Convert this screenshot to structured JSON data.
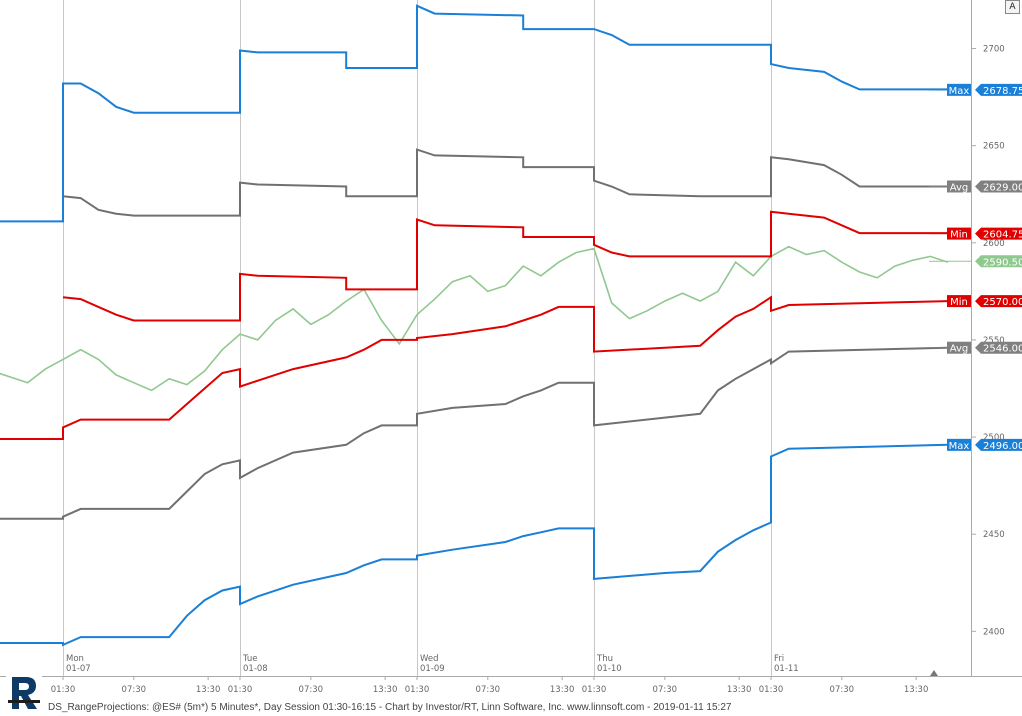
{
  "chart_data": {
    "type": "line",
    "footer": "DS_RangeProjections: @ES# (5m*) 5 Minutes*, Day Session 01:30-16:15 - Chart by Investor/RT, Linn Software, Inc. www.linnsoft.com - 2019-01-11 15:27",
    "ylim": [
      2377,
      2725
    ],
    "yticks": [
      2400,
      2450,
      2500,
      2550,
      2600,
      2650,
      2700
    ],
    "days": [
      {
        "name": "Mon",
        "date": "01-07"
      },
      {
        "name": "Tue",
        "date": "01-08"
      },
      {
        "name": "Wed",
        "date": "01-09"
      },
      {
        "name": "Thu",
        "date": "01-10"
      },
      {
        "name": "Fri",
        "date": "01-11"
      }
    ],
    "time_labels": [
      "01:30",
      "07:30",
      "13:30"
    ],
    "colors": {
      "max": "#1a7fd6",
      "avg": "#707070",
      "min": "#e00000",
      "price": "#90c890",
      "grid": "#c8c8c8",
      "axis": "#aaaaaa"
    },
    "markers": [
      {
        "label": "Max",
        "value": "2678.75",
        "y": 2678.75,
        "color": "#1a7fd6"
      },
      {
        "label": "Avg",
        "value": "2629.00",
        "y": 2629.0,
        "color": "#808080"
      },
      {
        "label": "Min",
        "value": "2604.75",
        "y": 2604.75,
        "color": "#e00000"
      },
      {
        "label": "",
        "value": "2590.50",
        "y": 2590.5,
        "color": "#8fc98f"
      },
      {
        "label": "Min",
        "value": "2570.00",
        "y": 2570.0,
        "color": "#e00000"
      },
      {
        "label": "Avg",
        "value": "2546.00",
        "y": 2546.0,
        "color": "#808080"
      },
      {
        "label": "Max",
        "value": "2496.00",
        "y": 2496.0,
        "color": "#1a7fd6"
      }
    ],
    "upper_series": [
      {
        "name": "",
        "color": "#1a7fd6",
        "points": [
          [
            0.0,
            2611
          ],
          [
            1.0,
            2611
          ],
          [
            1.0,
            2682
          ],
          [
            1.1,
            2682
          ],
          [
            1.2,
            2677
          ],
          [
            1.3,
            2670
          ],
          [
            1.4,
            2667
          ],
          [
            2.0,
            2667
          ],
          [
            2.0,
            2699
          ],
          [
            2.1,
            2698
          ],
          [
            2.6,
            2698
          ],
          [
            2.6,
            2690
          ],
          [
            3.0,
            2690
          ],
          [
            3.0,
            2722
          ],
          [
            3.1,
            2718
          ],
          [
            3.6,
            2717
          ],
          [
            3.6,
            2710
          ],
          [
            4.0,
            2710
          ],
          [
            4.0,
            2710
          ],
          [
            4.1,
            2707
          ],
          [
            4.2,
            2702
          ],
          [
            4.6,
            2702
          ],
          [
            4.6,
            2702
          ],
          [
            5.0,
            2702
          ],
          [
            5.0,
            2692
          ],
          [
            5.1,
            2690
          ],
          [
            5.3,
            2688
          ],
          [
            5.4,
            2683
          ],
          [
            5.5,
            2679
          ],
          [
            6.0,
            2679
          ]
        ]
      },
      {
        "name": "",
        "color": "#707070",
        "points": [
          [
            1.0,
            2624
          ],
          [
            1.1,
            2623
          ],
          [
            1.2,
            2617
          ],
          [
            1.3,
            2615
          ],
          [
            1.4,
            2614
          ],
          [
            2.0,
            2614
          ],
          [
            2.0,
            2631
          ],
          [
            2.1,
            2630
          ],
          [
            2.6,
            2629
          ],
          [
            2.6,
            2624
          ],
          [
            3.0,
            2624
          ],
          [
            3.0,
            2648
          ],
          [
            3.1,
            2645
          ],
          [
            3.6,
            2644
          ],
          [
            3.6,
            2639
          ],
          [
            4.0,
            2639
          ],
          [
            4.0,
            2632
          ],
          [
            4.1,
            2629
          ],
          [
            4.2,
            2625
          ],
          [
            4.6,
            2624
          ],
          [
            4.6,
            2624
          ],
          [
            5.0,
            2624
          ],
          [
            5.0,
            2644
          ],
          [
            5.1,
            2643
          ],
          [
            5.3,
            2640
          ],
          [
            5.4,
            2635
          ],
          [
            5.5,
            2629
          ],
          [
            6.0,
            2629
          ]
        ]
      },
      {
        "name": "",
        "color": "#e00000",
        "points": [
          [
            1.0,
            2572
          ],
          [
            1.1,
            2571
          ],
          [
            1.2,
            2567
          ],
          [
            1.3,
            2563
          ],
          [
            1.4,
            2560
          ],
          [
            2.0,
            2560
          ],
          [
            2.0,
            2584
          ],
          [
            2.1,
            2583
          ],
          [
            2.6,
            2582
          ],
          [
            2.6,
            2576
          ],
          [
            3.0,
            2576
          ],
          [
            3.0,
            2612
          ],
          [
            3.1,
            2609
          ],
          [
            3.6,
            2608
          ],
          [
            3.6,
            2603
          ],
          [
            4.0,
            2603
          ],
          [
            4.0,
            2599
          ],
          [
            4.1,
            2595
          ],
          [
            4.2,
            2593
          ],
          [
            4.6,
            2593
          ],
          [
            4.6,
            2593
          ],
          [
            5.0,
            2593
          ],
          [
            5.0,
            2616
          ],
          [
            5.1,
            2615
          ],
          [
            5.3,
            2613
          ],
          [
            5.4,
            2609
          ],
          [
            5.5,
            2605
          ],
          [
            6.0,
            2605
          ]
        ]
      }
    ],
    "lower_series": [
      {
        "name": "",
        "color": "#e00000",
        "points": [
          [
            0.0,
            2499
          ],
          [
            1.0,
            2499
          ],
          [
            1.0,
            2505
          ],
          [
            1.1,
            2509
          ],
          [
            1.6,
            2509
          ],
          [
            1.7,
            2517
          ],
          [
            1.8,
            2525
          ],
          [
            1.9,
            2533
          ],
          [
            2.0,
            2535
          ],
          [
            2.0,
            2526
          ],
          [
            2.1,
            2529
          ],
          [
            2.3,
            2535
          ],
          [
            2.6,
            2541
          ],
          [
            2.7,
            2545
          ],
          [
            2.8,
            2550
          ],
          [
            3.0,
            2550
          ],
          [
            3.0,
            2551
          ],
          [
            3.2,
            2553
          ],
          [
            3.5,
            2557
          ],
          [
            3.6,
            2560
          ],
          [
            3.7,
            2563
          ],
          [
            3.8,
            2567
          ],
          [
            4.0,
            2567
          ],
          [
            4.0,
            2544
          ],
          [
            4.4,
            2546
          ],
          [
            4.6,
            2547
          ],
          [
            4.7,
            2555
          ],
          [
            4.8,
            2562
          ],
          [
            4.9,
            2566
          ],
          [
            5.0,
            2572
          ],
          [
            5.0,
            2565
          ],
          [
            5.1,
            2568
          ],
          [
            6.0,
            2570
          ]
        ]
      },
      {
        "name": "",
        "color": "#707070",
        "points": [
          [
            0.0,
            2444
          ],
          [
            0.1,
            2449
          ],
          [
            0.2,
            2458
          ],
          [
            0.3,
            2458
          ],
          [
            1.0,
            2458
          ],
          [
            1.0,
            2459
          ],
          [
            1.1,
            2463
          ],
          [
            1.6,
            2463
          ],
          [
            1.7,
            2472
          ],
          [
            1.8,
            2481
          ],
          [
            1.9,
            2486
          ],
          [
            2.0,
            2488
          ],
          [
            2.0,
            2479
          ],
          [
            2.1,
            2484
          ],
          [
            2.3,
            2492
          ],
          [
            2.6,
            2496
          ],
          [
            2.7,
            2502
          ],
          [
            2.8,
            2506
          ],
          [
            3.0,
            2506
          ],
          [
            3.0,
            2512
          ],
          [
            3.2,
            2515
          ],
          [
            3.5,
            2517
          ],
          [
            3.6,
            2521
          ],
          [
            3.7,
            2524
          ],
          [
            3.8,
            2528
          ],
          [
            4.0,
            2528
          ],
          [
            4.0,
            2506
          ],
          [
            4.4,
            2510
          ],
          [
            4.6,
            2512
          ],
          [
            4.7,
            2524
          ],
          [
            4.8,
            2530
          ],
          [
            4.9,
            2535
          ],
          [
            5.0,
            2540
          ],
          [
            5.0,
            2538
          ],
          [
            5.1,
            2544
          ],
          [
            6.0,
            2546
          ]
        ]
      },
      {
        "name": "",
        "color": "#1a7fd6",
        "points": [
          [
            0.0,
            2380
          ],
          [
            0.1,
            2384
          ],
          [
            0.2,
            2394
          ],
          [
            0.3,
            2394
          ],
          [
            1.0,
            2394
          ],
          [
            1.0,
            2393
          ],
          [
            1.1,
            2397
          ],
          [
            1.6,
            2397
          ],
          [
            1.7,
            2408
          ],
          [
            1.8,
            2416
          ],
          [
            1.9,
            2421
          ],
          [
            2.0,
            2423
          ],
          [
            2.0,
            2414
          ],
          [
            2.1,
            2418
          ],
          [
            2.3,
            2424
          ],
          [
            2.6,
            2430
          ],
          [
            2.7,
            2434
          ],
          [
            2.8,
            2437
          ],
          [
            3.0,
            2437
          ],
          [
            3.0,
            2439
          ],
          [
            3.2,
            2442
          ],
          [
            3.5,
            2446
          ],
          [
            3.6,
            2449
          ],
          [
            3.7,
            2451
          ],
          [
            3.8,
            2453
          ],
          [
            4.0,
            2453
          ],
          [
            4.0,
            2427
          ],
          [
            4.4,
            2430
          ],
          [
            4.6,
            2431
          ],
          [
            4.7,
            2441
          ],
          [
            4.8,
            2447
          ],
          [
            4.9,
            2452
          ],
          [
            5.0,
            2456
          ],
          [
            5.0,
            2490
          ],
          [
            5.1,
            2494
          ],
          [
            6.0,
            2496
          ]
        ]
      }
    ],
    "price_line": [
      [
        0.0,
        2530
      ],
      [
        0.05,
        2518
      ],
      [
        0.1,
        2535
      ],
      [
        0.2,
        2522
      ],
      [
        0.3,
        2540
      ],
      [
        0.4,
        2528
      ],
      [
        0.5,
        2545
      ],
      [
        0.6,
        2534
      ],
      [
        0.7,
        2531
      ],
      [
        0.8,
        2528
      ],
      [
        0.9,
        2535
      ],
      [
        1.0,
        2540
      ],
      [
        1.1,
        2545
      ],
      [
        1.2,
        2540
      ],
      [
        1.3,
        2532
      ],
      [
        1.4,
        2528
      ],
      [
        1.5,
        2524
      ],
      [
        1.6,
        2530
      ],
      [
        1.7,
        2527
      ],
      [
        1.8,
        2534
      ],
      [
        1.9,
        2545
      ],
      [
        2.0,
        2553
      ],
      [
        2.1,
        2550
      ],
      [
        2.2,
        2560
      ],
      [
        2.3,
        2566
      ],
      [
        2.4,
        2558
      ],
      [
        2.5,
        2563
      ],
      [
        2.6,
        2570
      ],
      [
        2.7,
        2576
      ],
      [
        2.8,
        2560
      ],
      [
        2.9,
        2548
      ],
      [
        3.0,
        2563
      ],
      [
        3.1,
        2571
      ],
      [
        3.2,
        2580
      ],
      [
        3.3,
        2583
      ],
      [
        3.4,
        2575
      ],
      [
        3.5,
        2578
      ],
      [
        3.6,
        2588
      ],
      [
        3.7,
        2583
      ],
      [
        3.8,
        2590
      ],
      [
        3.9,
        2595
      ],
      [
        4.0,
        2597
      ],
      [
        4.1,
        2569
      ],
      [
        4.2,
        2561
      ],
      [
        4.3,
        2565
      ],
      [
        4.4,
        2570
      ],
      [
        4.5,
        2574
      ],
      [
        4.6,
        2570
      ],
      [
        4.7,
        2575
      ],
      [
        4.8,
        2590
      ],
      [
        4.9,
        2583
      ],
      [
        5.0,
        2593
      ],
      [
        5.1,
        2598
      ],
      [
        5.2,
        2594
      ],
      [
        5.3,
        2596
      ],
      [
        5.4,
        2590
      ],
      [
        5.5,
        2585
      ],
      [
        5.6,
        2582
      ],
      [
        5.7,
        2588
      ],
      [
        5.8,
        2591
      ],
      [
        5.9,
        2593
      ],
      [
        6.0,
        2590
      ]
    ]
  }
}
